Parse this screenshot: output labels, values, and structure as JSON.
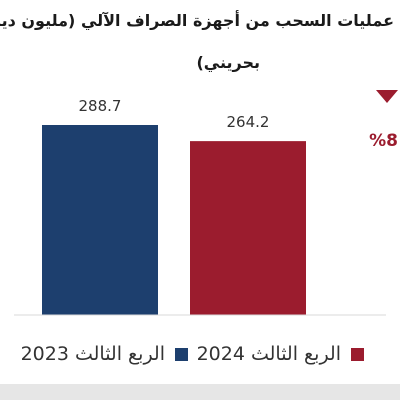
{
  "chart_data": {
    "type": "bar",
    "title_lines": [
      "عمليات السحب من أجهزة الصراف الآلي (مليون دينار",
      "بحريني)"
    ],
    "categories": [
      "الربع الثالث 2023",
      "الربع الثالث 2024"
    ],
    "values": [
      288.7,
      264.2
    ],
    "value_labels": [
      "288.7",
      "264.2"
    ],
    "colors": [
      "#1d3f6e",
      "#9b1c2e"
    ],
    "change_label": "%8",
    "change_direction": "down",
    "ylim": [
      0,
      300
    ],
    "grid": false,
    "legend_position": "bottom"
  }
}
